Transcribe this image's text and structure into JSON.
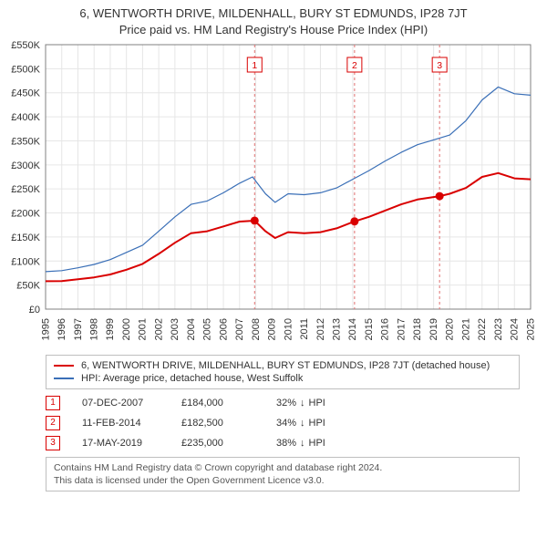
{
  "title_line1": "6, WENTWORTH DRIVE, MILDENHALL, BURY ST EDMUNDS, IP28 7JT",
  "title_line2": "Price paid vs. HM Land Registry's House Price Index (HPI)",
  "chart": {
    "type": "line",
    "background_color": "#ffffff",
    "plot_bg": "#ffffff",
    "grid_color": "#e6e6e6",
    "axis_color": "#808080",
    "font_size_ticks": 11,
    "x": {
      "min": 1995,
      "max": 2025,
      "ticks": [
        "1995",
        "1996",
        "1997",
        "1998",
        "1999",
        "2000",
        "2001",
        "2002",
        "2003",
        "2004",
        "2005",
        "2006",
        "2007",
        "2008",
        "2009",
        "2010",
        "2011",
        "2012",
        "2013",
        "2014",
        "2015",
        "2016",
        "2017",
        "2018",
        "2019",
        "2020",
        "2021",
        "2022",
        "2023",
        "2024",
        "2025"
      ]
    },
    "y": {
      "min": 0,
      "max": 550000,
      "tick_step": 50000,
      "tick_format": "currency_k",
      "ticks": [
        "£0",
        "£50K",
        "£100K",
        "£150K",
        "£200K",
        "£250K",
        "£300K",
        "£350K",
        "£400K",
        "£450K",
        "£500K",
        "£550K"
      ]
    },
    "series": [
      {
        "id": "property",
        "label": "6, WENTWORTH DRIVE, MILDENHALL, BURY ST EDMUNDS, IP28 7JT (detached house)",
        "color": "#d90000",
        "width": 2,
        "points": [
          [
            1995.0,
            58000
          ],
          [
            1996.0,
            58500
          ],
          [
            1997.0,
            62000
          ],
          [
            1998.0,
            66000
          ],
          [
            1999.0,
            72000
          ],
          [
            2000.0,
            82000
          ],
          [
            2001.0,
            94000
          ],
          [
            2002.0,
            115000
          ],
          [
            2003.0,
            138000
          ],
          [
            2004.0,
            158000
          ],
          [
            2005.0,
            162000
          ],
          [
            2006.0,
            172000
          ],
          [
            2007.0,
            182000
          ],
          [
            2007.93,
            184000
          ],
          [
            2008.6,
            162000
          ],
          [
            2009.2,
            148000
          ],
          [
            2010.0,
            160000
          ],
          [
            2011.0,
            158000
          ],
          [
            2012.0,
            160000
          ],
          [
            2013.0,
            168000
          ],
          [
            2014.11,
            182500
          ],
          [
            2015.0,
            192000
          ],
          [
            2016.0,
            205000
          ],
          [
            2017.0,
            218000
          ],
          [
            2018.0,
            228000
          ],
          [
            2019.37,
            235000
          ],
          [
            2020.0,
            240000
          ],
          [
            2021.0,
            252000
          ],
          [
            2022.0,
            275000
          ],
          [
            2023.0,
            283000
          ],
          [
            2024.0,
            272000
          ],
          [
            2025.0,
            270000
          ]
        ]
      },
      {
        "id": "hpi",
        "label": "HPI: Average price, detached house, West Suffolk",
        "color": "#3a6fb7",
        "width": 1.2,
        "points": [
          [
            1995.0,
            78000
          ],
          [
            1996.0,
            80000
          ],
          [
            1997.0,
            86000
          ],
          [
            1998.0,
            93000
          ],
          [
            1999.0,
            103000
          ],
          [
            2000.0,
            118000
          ],
          [
            2001.0,
            133000
          ],
          [
            2002.0,
            162000
          ],
          [
            2003.0,
            192000
          ],
          [
            2004.0,
            218000
          ],
          [
            2005.0,
            225000
          ],
          [
            2006.0,
            242000
          ],
          [
            2007.0,
            262000
          ],
          [
            2007.8,
            275000
          ],
          [
            2008.6,
            240000
          ],
          [
            2009.2,
            222000
          ],
          [
            2010.0,
            240000
          ],
          [
            2011.0,
            238000
          ],
          [
            2012.0,
            242000
          ],
          [
            2013.0,
            252000
          ],
          [
            2014.0,
            270000
          ],
          [
            2015.0,
            288000
          ],
          [
            2016.0,
            308000
          ],
          [
            2017.0,
            326000
          ],
          [
            2018.0,
            342000
          ],
          [
            2019.0,
            352000
          ],
          [
            2020.0,
            362000
          ],
          [
            2021.0,
            392000
          ],
          [
            2022.0,
            435000
          ],
          [
            2023.0,
            462000
          ],
          [
            2024.0,
            448000
          ],
          [
            2025.0,
            445000
          ]
        ]
      }
    ],
    "sale_markers": [
      {
        "n": "1",
        "x": 2007.93,
        "y": 184000,
        "color": "#d90000"
      },
      {
        "n": "2",
        "x": 2014.11,
        "y": 182500,
        "color": "#d90000"
      },
      {
        "n": "3",
        "x": 2019.37,
        "y": 235000,
        "color": "#d90000"
      }
    ],
    "marker_dashed_color": "#e07070",
    "marker_label_top_offset": 14
  },
  "legend": {
    "rows": [
      {
        "color": "#d90000",
        "label_key": "chart.series.0.label"
      },
      {
        "color": "#3a6fb7",
        "label_key": "chart.series.1.label"
      }
    ]
  },
  "sales": [
    {
      "n": "1",
      "date": "07-DEC-2007",
      "price": "£184,000",
      "delta": "32%",
      "dir": "↓",
      "vs": "HPI"
    },
    {
      "n": "2",
      "date": "11-FEB-2014",
      "price": "£182,500",
      "delta": "34%",
      "dir": "↓",
      "vs": "HPI"
    },
    {
      "n": "3",
      "date": "17-MAY-2019",
      "price": "£235,000",
      "delta": "38%",
      "dir": "↓",
      "vs": "HPI"
    }
  ],
  "marker_color": "#d90000",
  "credit_line1": "Contains HM Land Registry data © Crown copyright and database right 2024.",
  "credit_line2": "This data is licensed under the Open Government Licence v3.0."
}
